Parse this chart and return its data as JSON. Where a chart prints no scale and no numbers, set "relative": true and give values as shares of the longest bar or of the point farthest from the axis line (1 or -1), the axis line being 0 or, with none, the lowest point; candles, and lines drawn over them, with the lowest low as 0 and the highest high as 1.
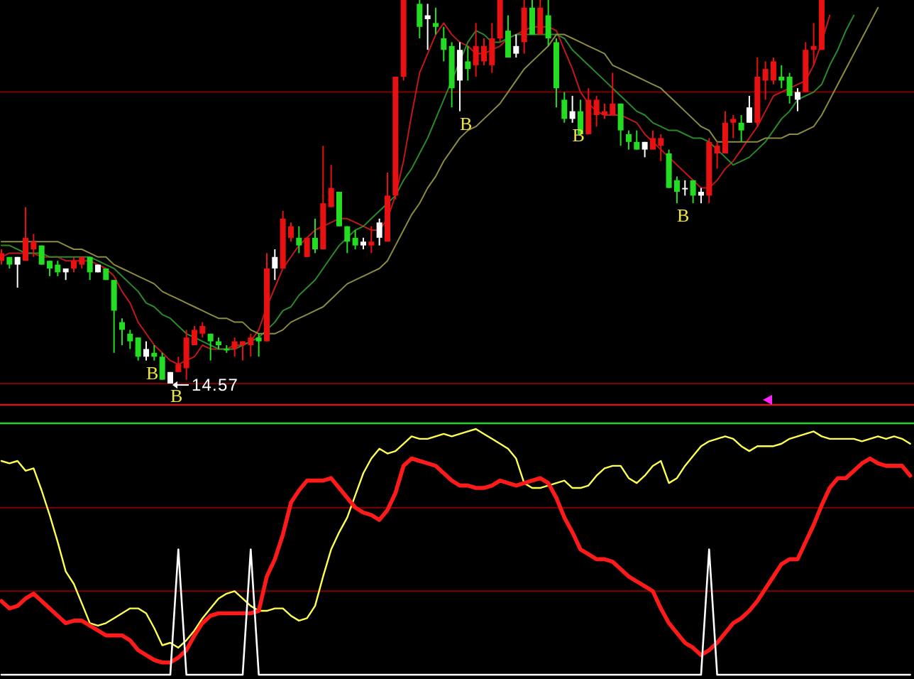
{
  "chart_data": [
    {
      "type": "candlestick",
      "relative": true,
      "categories": [
        null,
        null,
        null,
        null,
        null,
        null,
        null,
        null,
        null,
        null,
        null,
        null,
        null,
        null,
        null,
        null,
        null,
        null,
        null,
        null,
        null,
        null,
        null,
        null,
        null,
        null,
        null,
        null,
        null,
        null,
        null,
        null,
        null,
        null,
        null,
        null,
        null,
        null,
        null,
        null,
        null,
        null,
        null,
        null,
        null,
        null,
        null,
        null,
        null,
        null,
        null,
        null,
        null,
        null,
        null,
        null,
        null,
        null,
        null,
        null,
        null,
        null,
        null,
        null,
        null,
        null,
        null,
        null,
        null,
        null,
        null,
        null,
        null,
        null,
        null,
        null,
        null,
        null,
        null,
        null,
        null,
        null,
        null,
        null,
        null,
        null,
        null,
        null,
        null,
        null,
        null,
        null,
        null,
        null,
        null,
        null,
        null,
        null,
        null,
        null,
        null,
        null,
        null,
        null,
        null,
        null,
        null,
        null,
        null,
        null,
        null,
        null,
        null,
        null
      ],
      "ohlc": [
        [
          0.32,
          0.35,
          0.31,
          0.34
        ],
        [
          0.33,
          0.33,
          0.3,
          0.31
        ],
        [
          0.31,
          0.33,
          0.25,
          0.33
        ],
        [
          0.32,
          0.46,
          0.32,
          0.38
        ],
        [
          0.35,
          0.39,
          0.33,
          0.37
        ],
        [
          0.36,
          0.36,
          0.31,
          0.31
        ],
        [
          0.32,
          0.32,
          0.28,
          0.3
        ],
        [
          0.31,
          0.32,
          0.28,
          0.29
        ],
        [
          0.29,
          0.3,
          0.27,
          0.3
        ],
        [
          0.3,
          0.33,
          0.29,
          0.32
        ],
        [
          0.31,
          0.33,
          0.3,
          0.33
        ],
        [
          0.33,
          0.33,
          0.27,
          0.29
        ],
        [
          0.29,
          0.31,
          0.29,
          0.31
        ],
        [
          0.3,
          0.3,
          0.27,
          0.27
        ],
        [
          0.27,
          0.27,
          0.08,
          0.19
        ],
        [
          0.16,
          0.17,
          0.1,
          0.14
        ],
        [
          0.13,
          0.14,
          0.09,
          0.11
        ],
        [
          0.12,
          0.12,
          0.06,
          0.07
        ],
        [
          0.07,
          0.11,
          0.06,
          0.09
        ],
        [
          0.08,
          0.1,
          0.06,
          0.07
        ],
        [
          0.07,
          0.08,
          0.01,
          0.01
        ],
        [
          0,
          0.03,
          0,
          0.03
        ],
        [
          0.03,
          0.07,
          0.03,
          0.05
        ],
        [
          0.04,
          0.14,
          0.01,
          0.12
        ],
        [
          0.1,
          0.15,
          0.1,
          0.14
        ],
        [
          0.13,
          0.16,
          0.12,
          0.15
        ],
        [
          0.13,
          0.13,
          0.06,
          0.11
        ],
        [
          0.11,
          0.12,
          0.09,
          0.1
        ],
        [
          0.09,
          0.1,
          0.08,
          0.09
        ],
        [
          0.09,
          0.12,
          0.07,
          0.11
        ],
        [
          0.1,
          0.11,
          0.06,
          0.11
        ],
        [
          0.1,
          0.13,
          0.07,
          0.12
        ],
        [
          0.12,
          0.13,
          0.07,
          0.11
        ],
        [
          0.11,
          0.34,
          0.11,
          0.3
        ],
        [
          0.3,
          0.35,
          0.27,
          0.33
        ],
        [
          0.3,
          0.45,
          0.3,
          0.43
        ],
        [
          0.38,
          0.42,
          0.37,
          0.41
        ],
        [
          0.38,
          0.41,
          0.34,
          0.36
        ],
        [
          0.33,
          0.38,
          0.33,
          0.38
        ],
        [
          0.38,
          0.43,
          0.34,
          0.35
        ],
        [
          0.35,
          0.62,
          0.35,
          0.47
        ],
        [
          0.46,
          0.57,
          0.46,
          0.51
        ],
        [
          0.5,
          0.5,
          0.41,
          0.41
        ],
        [
          0.41,
          0.41,
          0.34,
          0.37
        ],
        [
          0.38,
          0.4,
          0.35,
          0.36
        ],
        [
          0.36,
          0.38,
          0.35,
          0.37
        ],
        [
          0.36,
          0.41,
          0.34,
          0.37
        ],
        [
          0.38,
          0.43,
          0.36,
          0.42
        ],
        [
          0.37,
          0.55,
          0.37,
          0.49
        ],
        [
          0.49,
          0.8,
          0.48,
          0.8
        ],
        [
          0.8,
          1,
          0.79,
          1
        ],
        null,
        [
          0.99,
          1,
          0.9,
          0.93
        ],
        [
          0.95,
          0.99,
          0.87,
          0.96
        ],
        [
          0.94,
          0.98,
          0.91,
          0.93
        ],
        [
          0.9,
          0.93,
          0.84,
          0.87
        ],
        [
          0.88,
          0.89,
          0.72,
          0.77
        ],
        [
          0.79,
          0.89,
          0.71,
          0.87
        ],
        [
          0.84,
          0.88,
          0.79,
          0.82
        ],
        [
          0.83,
          0.94,
          0.8,
          0.88
        ],
        [
          0.84,
          0.9,
          0.83,
          0.88
        ],
        [
          0.83,
          0.94,
          0.81,
          0.9
        ],
        [
          0.9,
          1,
          0.89,
          1
        ],
        [
          0.92,
          0.96,
          0.85,
          0.85
        ],
        [
          0.86,
          0.91,
          0.85,
          0.88
        ],
        [
          0.89,
          1,
          0.86,
          0.98
        ],
        [
          0.98,
          1,
          0.91,
          0.91
        ],
        [
          0.91,
          1,
          0.91,
          0.98
        ],
        [
          0.96,
          1,
          0.88,
          0.9
        ],
        [
          0.89,
          0.9,
          0.72,
          0.77
        ],
        [
          0.74,
          0.76,
          0.68,
          0.69
        ],
        [
          0.69,
          0.75,
          0.68,
          0.71
        ],
        [
          0.71,
          0.74,
          0.65,
          0.65
        ],
        [
          0.65,
          0.77,
          0.65,
          0.74
        ],
        [
          0.7,
          0.75,
          0.67,
          0.74
        ],
        [
          0.7,
          0.73,
          0.69,
          0.71
        ],
        [
          0.7,
          0.81,
          0.7,
          0.73
        ],
        [
          0.73,
          0.73,
          0.62,
          0.66
        ],
        [
          0.65,
          0.66,
          0.61,
          0.63
        ],
        [
          0.63,
          0.66,
          0.61,
          0.61
        ],
        [
          0.61,
          0.63,
          0.59,
          0.63
        ],
        [
          0.61,
          0.66,
          0.61,
          0.64
        ],
        [
          0.62,
          0.65,
          0.58,
          0.64
        ],
        [
          0.6,
          0.61,
          0.51,
          0.51
        ],
        [
          0.53,
          0.54,
          0.47,
          0.5
        ],
        [
          0.51,
          0.53,
          0.49,
          0.51
        ],
        [
          0.53,
          0.53,
          0.47,
          0.49
        ],
        [
          0.49,
          0.51,
          0.47,
          0.5
        ],
        [
          0.49,
          0.64,
          0.47,
          0.63
        ],
        [
          0.6,
          0.63,
          0.56,
          0.62
        ],
        [
          0.6,
          0.71,
          0.6,
          0.68
        ],
        [
          0.68,
          0.7,
          0.64,
          0.69
        ],
        [
          0.68,
          0.7,
          0.63,
          0.66
        ],
        [
          0.68,
          0.75,
          0.68,
          0.72
        ],
        [
          0.68,
          0.85,
          0.67,
          0.8
        ],
        [
          0.79,
          0.84,
          0.74,
          0.82
        ],
        [
          0.79,
          0.85,
          0.78,
          0.84
        ],
        [
          0.8,
          0.83,
          0.77,
          0.79
        ],
        [
          0.8,
          0.81,
          0.73,
          0.75
        ],
        [
          0.74,
          0.77,
          0.71,
          0.76
        ],
        [
          0.76,
          0.89,
          0.76,
          0.87
        ],
        [
          0.87,
          0.94,
          0.83,
          0.88
        ],
        [
          0.87,
          1,
          0.87,
          1
        ],
        null,
        null,
        null,
        null,
        null,
        null,
        null,
        null,
        null,
        null,
        null
      ],
      "colors": [
        "#e81010",
        "#22dd22",
        "#ffffff",
        "#e81010",
        "#e81010",
        "#22dd22",
        "#22dd22",
        "#22dd22",
        "#ffffff",
        "#e81010",
        "#e81010",
        "#22dd22",
        "#ffffff",
        "#22dd22",
        "#22dd22",
        "#22dd22",
        "#22dd22",
        "#22dd22",
        "#ffffff",
        "#22dd22",
        "#22dd22",
        "#ffffff",
        "#e81010",
        "#e81010",
        "#e81010",
        "#e81010",
        "#22dd22",
        "#22dd22",
        "#22dd22",
        "#e81010",
        "#e81010",
        "#e81010",
        "#22dd22",
        "#e81010",
        "#ffffff",
        "#e81010",
        "#e81010",
        "#22dd22",
        "#e81010",
        "#22dd22",
        "#e81010",
        "#e81010",
        "#22dd22",
        "#22dd22",
        "#22dd22",
        "#ffffff",
        "#e81010",
        "#ffffff",
        "#e81010",
        "#e81010",
        "#e81010",
        null,
        "#22dd22",
        "#ffffff",
        "#22dd22",
        "#22dd22",
        "#22dd22",
        "#ffffff",
        "#22dd22",
        "#e81010",
        "#e81010",
        "#e81010",
        "#e81010",
        "#22dd22",
        "#ffffff",
        "#e81010",
        "#22dd22",
        "#e81010",
        "#22dd22",
        "#22dd22",
        "#22dd22",
        "#ffffff",
        "#22dd22",
        "#e81010",
        "#e81010",
        "#e81010",
        "#e81010",
        "#22dd22",
        "#22dd22",
        "#22dd22",
        "#ffffff",
        "#e81010",
        "#e81010",
        "#22dd22",
        "#22dd22",
        "#ffffff",
        "#22dd22",
        "#ffffff",
        "#e81010",
        "#e81010",
        "#e81010",
        "#e81010",
        "#22dd22",
        "#ffffff",
        "#e81010",
        "#e81010",
        "#e81010",
        "#22dd22",
        "#22dd22",
        "#ffffff",
        "#e81010",
        "#e81010",
        "#e81010",
        null,
        null,
        null,
        null,
        null,
        null,
        null,
        null,
        null,
        null,
        null
      ],
      "value_labels": [
        null,
        null,
        null,
        null,
        null,
        null,
        null,
        null,
        null,
        null,
        null,
        null,
        null,
        null,
        null,
        null,
        null,
        null,
        "B",
        null,
        null,
        "B",
        null,
        null,
        null,
        null,
        null,
        null,
        null,
        null,
        null,
        null,
        null,
        null,
        null,
        null,
        null,
        null,
        null,
        null,
        null,
        null,
        null,
        null,
        null,
        null,
        null,
        null,
        null,
        null,
        null,
        null,
        null,
        null,
        null,
        null,
        null,
        "B",
        null,
        null,
        null,
        null,
        null,
        null,
        null,
        null,
        null,
        null,
        null,
        null,
        null,
        "B",
        null,
        null,
        null,
        null,
        null,
        null,
        null,
        null,
        null,
        null,
        null,
        null,
        "B",
        null,
        null,
        null,
        null,
        null,
        null,
        null,
        null,
        null,
        null,
        null,
        null,
        null,
        null,
        null,
        null,
        null,
        null,
        null,
        null,
        null,
        null,
        null,
        null,
        null,
        null,
        null,
        null,
        null
      ],
      "series": [
        {
          "type": "line",
          "color": "#c01818",
          "values": [
            0.33,
            0.34,
            0.34,
            0.34,
            0.34,
            0.33,
            0.33,
            0.33,
            0.32,
            0.32,
            0.32,
            0.32,
            0.31,
            0.3,
            0.28,
            0.24,
            0.21,
            0.16,
            0.13,
            0.1,
            0.08,
            0.06,
            0.05,
            0.06,
            0.07,
            0.1,
            0.09,
            0.09,
            0.09,
            0.1,
            0.1,
            0.11,
            0.14,
            0.2,
            0.25,
            0.3,
            0.33,
            0.36,
            0.38,
            0.4,
            0.41,
            0.42,
            0.43,
            0.43,
            0.42,
            0.41,
            0.4,
            0.4,
            0.43,
            0.49,
            0.58,
            0.7,
            0.81,
            0.86,
            0.91,
            0.94,
            0.91,
            0.89,
            0.88,
            0.86,
            0.86,
            0.87,
            0.88,
            0.9,
            0.91,
            0.92,
            0.93,
            0.93,
            0.93,
            0.92,
            0.87,
            0.82,
            0.76,
            0.73,
            0.71,
            0.7,
            0.7,
            0.7,
            0.69,
            0.68,
            0.65,
            0.63,
            0.61,
            0.59,
            0.57,
            0.55,
            0.53,
            0.51,
            0.51,
            0.53,
            0.56,
            0.58,
            0.61,
            0.64,
            0.67,
            0.71,
            0.75,
            0.76,
            0.77,
            0.78,
            0.79,
            0.83,
            0.89,
            0.96,
            null,
            null,
            null,
            null,
            null,
            null,
            null,
            null,
            null,
            null
          ]
        },
        {
          "type": "line",
          "color": "#2a8a2a",
          "values": [
            0.36,
            0.36,
            0.35,
            0.34,
            0.34,
            0.34,
            0.33,
            0.33,
            0.33,
            0.33,
            0.33,
            0.33,
            0.32,
            0.31,
            0.3,
            0.28,
            0.26,
            0.24,
            0.21,
            0.2,
            0.18,
            0.17,
            0.15,
            0.13,
            0.12,
            0.11,
            0.1,
            0.09,
            0.09,
            0.09,
            0.1,
            0.11,
            0.12,
            0.14,
            0.16,
            0.19,
            0.2,
            0.23,
            0.25,
            0.27,
            0.3,
            0.33,
            0.36,
            0.38,
            0.4,
            0.41,
            0.43,
            0.45,
            0.47,
            0.49,
            0.53,
            0.56,
            0.6,
            0.64,
            0.69,
            0.74,
            0.79,
            0.84,
            0.89,
            0.92,
            0.91,
            0.89,
            0.89,
            0.9,
            0.91,
            0.91,
            0.91,
            0.91,
            0.91,
            0.91,
            0.9,
            0.87,
            0.85,
            0.83,
            0.81,
            0.79,
            0.77,
            0.75,
            0.73,
            0.71,
            0.7,
            0.68,
            0.67,
            0.66,
            0.66,
            0.65,
            0.64,
            0.64,
            0.63,
            0.61,
            0.59,
            0.57,
            0.58,
            0.59,
            0.61,
            0.63,
            0.66,
            0.69,
            0.71,
            0.74,
            0.75,
            0.76,
            0.78,
            0.83,
            0.87,
            0.92,
            0.96,
            null,
            null,
            null,
            null,
            null,
            null,
            null
          ]
        },
        {
          "type": "line",
          "color": "#8c8c40",
          "values": [
            0.37,
            0.37,
            0.37,
            0.37,
            0.37,
            0.37,
            0.37,
            0.37,
            0.36,
            0.35,
            0.35,
            0.34,
            0.33,
            0.33,
            0.31,
            0.3,
            0.29,
            0.28,
            0.27,
            0.26,
            0.24,
            0.23,
            0.22,
            0.21,
            0.2,
            0.19,
            0.18,
            0.17,
            0.17,
            0.16,
            0.16,
            0.14,
            0.13,
            0.13,
            0.13,
            0.14,
            0.16,
            0.17,
            0.18,
            0.19,
            0.2,
            0.22,
            0.24,
            0.26,
            0.27,
            0.28,
            0.29,
            0.3,
            0.32,
            0.36,
            0.4,
            0.44,
            0.47,
            0.51,
            0.54,
            0.58,
            0.61,
            0.64,
            0.66,
            0.67,
            0.69,
            0.71,
            0.73,
            0.76,
            0.79,
            0.82,
            0.84,
            0.86,
            0.88,
            0.91,
            0.91,
            0.9,
            0.89,
            0.88,
            0.87,
            0.86,
            0.83,
            0.82,
            0.81,
            0.8,
            0.79,
            0.78,
            0.77,
            0.75,
            0.73,
            0.71,
            0.69,
            0.67,
            0.66,
            0.63,
            0.63,
            0.63,
            0.63,
            0.63,
            0.63,
            0.64,
            0.64,
            0.64,
            0.65,
            0.65,
            0.66,
            0.67,
            0.7,
            0.74,
            0.78,
            0.82,
            0.86,
            0.9,
            0.94,
            0.98,
            null,
            null,
            null,
            null
          ]
        }
      ],
      "ref_lines": [
        {
          "axis": "y",
          "value": 0.76,
          "color": "#800000"
        },
        {
          "axis": "y",
          "value": 0,
          "color": "#800000"
        }
      ],
      "annotations": [
        {
          "text": "14.57",
          "y": 0
        }
      ]
    },
    {
      "type": "line",
      "relative": true,
      "categories": [
        null,
        null,
        null,
        null,
        null,
        null,
        null,
        null,
        null,
        null,
        null,
        null,
        null,
        null,
        null,
        null,
        null,
        null,
        null,
        null,
        null,
        null,
        null,
        null,
        null,
        null,
        null,
        null,
        null,
        null,
        null,
        null,
        null,
        null,
        null,
        null,
        null,
        null,
        null,
        null,
        null,
        null,
        null,
        null,
        null,
        null,
        null,
        null,
        null,
        null,
        null,
        null,
        null,
        null,
        null,
        null,
        null,
        null,
        null,
        null,
        null,
        null,
        null,
        null,
        null,
        null,
        null,
        null,
        null,
        null,
        null,
        null,
        null,
        null,
        null,
        null,
        null,
        null,
        null,
        null,
        null,
        null,
        null,
        null,
        null,
        null,
        null,
        null,
        null,
        null,
        null,
        null,
        null,
        null,
        null,
        null,
        null,
        null,
        null,
        null,
        null,
        null,
        null,
        null,
        null,
        null,
        null,
        null,
        null,
        null,
        null,
        null,
        null,
        null
      ],
      "series": [
        {
          "color": "#ffff50",
          "values": [
            0.87,
            0.86,
            0.87,
            0.83,
            0.84,
            0.75,
            0.65,
            0.54,
            0.42,
            0.37,
            0.29,
            0.21,
            0.2,
            0.21,
            0.23,
            0.25,
            0.27,
            0.27,
            0.25,
            0.19,
            0.12,
            0.13,
            0.11,
            0.14,
            0.18,
            0.23,
            0.27,
            0.31,
            0.33,
            0.34,
            0.31,
            0.28,
            0.26,
            0.26,
            0.27,
            0.27,
            0.24,
            0.22,
            0.23,
            0.28,
            0.4,
            0.51,
            0.58,
            0.64,
            0.73,
            0.82,
            0.88,
            0.92,
            0.9,
            0.91,
            0.94,
            0.97,
            0.96,
            0.96,
            0.97,
            0.98,
            0.97,
            0.98,
            0.99,
            1,
            0.98,
            0.96,
            0.94,
            0.92,
            0.88,
            0.78,
            0.76,
            0.76,
            0.77,
            0.78,
            0.79,
            0.76,
            0.76,
            0.77,
            0.81,
            0.84,
            0.85,
            0.85,
            0.8,
            0.78,
            0.81,
            0.85,
            0.87,
            0.78,
            0.8,
            0.85,
            0.89,
            0.93,
            0.95,
            0.96,
            0.97,
            0.96,
            0.93,
            0.91,
            0.93,
            0.93,
            0.93,
            0.94,
            0.96,
            0.97,
            0.98,
            0.99,
            0.97,
            0.96,
            0.96,
            0.96,
            0.96,
            0.95,
            0.96,
            0.97,
            0.96,
            0.97,
            0.96,
            0.94
          ]
        },
        {
          "color": "#ff1a1a",
          "values": [
            0.3,
            0.27,
            0.28,
            0.31,
            0.33,
            0.3,
            0.27,
            0.24,
            0.21,
            0.22,
            0.22,
            0.2,
            0.18,
            0.16,
            0.16,
            0.16,
            0.14,
            0.1,
            0.08,
            0.06,
            0.05,
            0.05,
            0.07,
            0.1,
            0.16,
            0.21,
            0.24,
            0.25,
            0.25,
            0.25,
            0.25,
            0.25,
            0.26,
            0.4,
            0.47,
            0.57,
            0.7,
            0.75,
            0.79,
            0.79,
            0.79,
            0.8,
            0.76,
            0.72,
            0.68,
            0.66,
            0.65,
            0.63,
            0.67,
            0.74,
            0.85,
            0.88,
            0.87,
            0.86,
            0.85,
            0.82,
            0.79,
            0.77,
            0.77,
            0.76,
            0.76,
            0.77,
            0.79,
            0.78,
            0.77,
            0.78,
            0.79,
            0.8,
            0.78,
            0.72,
            0.64,
            0.58,
            0.51,
            0.49,
            0.47,
            0.47,
            0.46,
            0.43,
            0.4,
            0.38,
            0.36,
            0.34,
            0.27,
            0.21,
            0.17,
            0.13,
            0.11,
            0.08,
            0.1,
            0.13,
            0.17,
            0.21,
            0.23,
            0.26,
            0.3,
            0.35,
            0.4,
            0.45,
            0.47,
            0.47,
            0.54,
            0.61,
            0.69,
            0.76,
            0.8,
            0.8,
            0.83,
            0.86,
            0.88,
            0.86,
            0.85,
            0.85,
            0.85,
            0.81
          ]
        },
        {
          "color": "#ffffff",
          "values": [
            0,
            0,
            0,
            0,
            0,
            0,
            0,
            0,
            0,
            0,
            0,
            0,
            0,
            0,
            0,
            0,
            0,
            0,
            0,
            0,
            0,
            0,
            0.51,
            0,
            0,
            0,
            0,
            0,
            0,
            0,
            0,
            0.51,
            0,
            0,
            0,
            0,
            0,
            0,
            0,
            0,
            0,
            0,
            0,
            0,
            0,
            0,
            0,
            0,
            0,
            0,
            0,
            0,
            0,
            0,
            0,
            0,
            0,
            0,
            0,
            0,
            0,
            0,
            0,
            0,
            0,
            0,
            0,
            0,
            0,
            0,
            0,
            0,
            0,
            0,
            0,
            0,
            0,
            0,
            0,
            0,
            0,
            0,
            0,
            0,
            0,
            0,
            0,
            0,
            0.51,
            0,
            0,
            0,
            0,
            0,
            0,
            0,
            0,
            0,
            0,
            0,
            0,
            0,
            0,
            0,
            0,
            0,
            0,
            0,
            0,
            0,
            0,
            0,
            0,
            0
          ]
        }
      ],
      "ref_lines": [
        {
          "axis": "y",
          "value": 0.68,
          "color": "#800000"
        },
        {
          "axis": "y",
          "value": 0.34,
          "color": "#800000"
        }
      ]
    }
  ]
}
